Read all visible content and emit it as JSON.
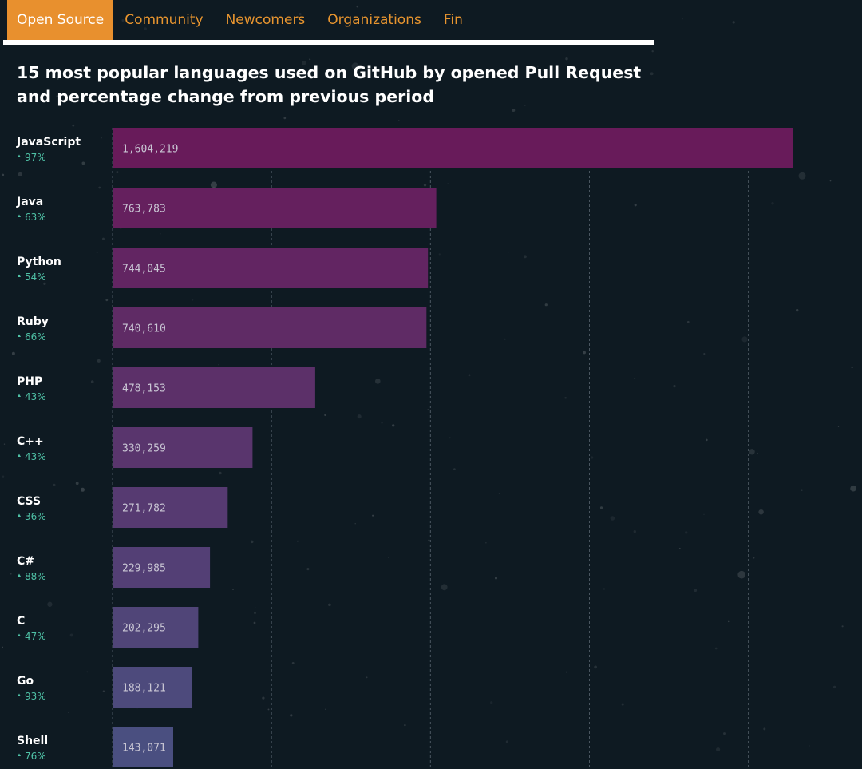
{
  "nav": {
    "tabs": [
      {
        "label": "Open Source",
        "active": true
      },
      {
        "label": "Community",
        "active": false
      },
      {
        "label": "Newcomers",
        "active": false
      },
      {
        "label": "Organizations",
        "active": false
      },
      {
        "label": "Fin",
        "active": false
      }
    ]
  },
  "headline": "15 most popular languages used on GitHub by opened Pull Request and percentage change from previous period",
  "colors": {
    "background": "#0e1a22",
    "accent": "#e8902e",
    "positive_change": "#4fc1a6",
    "bar_top": "#681b5a",
    "bar_bottom": "#4a4f80",
    "value_text": "#c9c6d4"
  },
  "chart_data": {
    "type": "bar",
    "orientation": "horizontal",
    "title": "15 most popular languages used on GitHub by opened Pull Request and percentage change from previous period",
    "categories": [
      "JavaScript",
      "Java",
      "Python",
      "Ruby",
      "PHP",
      "C++",
      "CSS",
      "C#",
      "C",
      "Go",
      "Shell"
    ],
    "values": [
      1604219,
      763783,
      744045,
      740610,
      478153,
      330259,
      271782,
      229985,
      202295,
      188121,
      143071
    ],
    "value_labels": [
      "1,604,219",
      "763,783",
      "744,045",
      "740,610",
      "478,153",
      "330,259",
      "271,782",
      "229,985",
      "202,295",
      "188,121",
      "143,071"
    ],
    "changes": [
      "97%",
      "63%",
      "54%",
      "66%",
      "43%",
      "43%",
      "36%",
      "88%",
      "47%",
      "93%",
      "76%"
    ],
    "change_direction": "up",
    "xlim": [
      0,
      1600000
    ],
    "grid": true,
    "grid_style": "dashed vertical",
    "grid_step": 375000
  }
}
